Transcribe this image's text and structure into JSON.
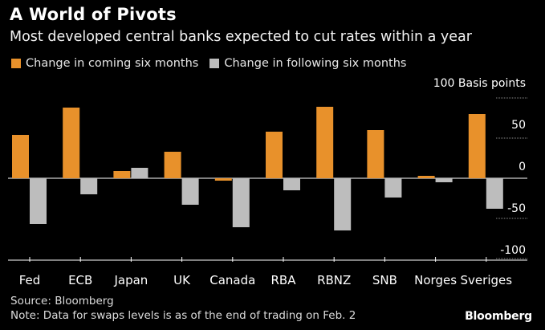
{
  "header": {
    "title": "A World of Pivots",
    "subtitle": "Most developed central banks expected to cut rates within a year"
  },
  "legend": {
    "items": [
      {
        "label": "Change in coming six months",
        "color": "#E8912B"
      },
      {
        "label": "Change in following six months",
        "color": "#BDBDBD"
      }
    ]
  },
  "footer": {
    "source": "Source: Bloomberg",
    "note": "Note: Data for swaps levels is as of the end of trading on Feb. 2",
    "brand": "Bloomberg"
  },
  "chart_data": {
    "type": "bar",
    "title": "A World of Pivots",
    "subtitle": "Most developed central banks expected to cut rates within a year",
    "unit_label": "Basis points",
    "categories": [
      "Fed",
      "ECB",
      "Japan",
      "UK",
      "Canada",
      "RBA",
      "RBNZ",
      "SNB",
      "Norges",
      "Sveriges"
    ],
    "series": [
      {
        "name": "Change in coming six months",
        "color": "#E8912B",
        "values": [
          54,
          88,
          9,
          33,
          -3,
          58,
          89,
          60,
          3,
          80
        ]
      },
      {
        "name": "Change in following six months",
        "color": "#BDBDBD",
        "values": [
          -57,
          -20,
          13,
          -33,
          -61,
          -15,
          -65,
          -24,
          -5,
          -38
        ]
      }
    ],
    "yticks": [
      100,
      50,
      0,
      -50,
      -100
    ],
    "ytick_labels": [
      "100 Basis points",
      "50",
      "0",
      "-50",
      "-100"
    ],
    "ylim": [
      -100,
      100
    ],
    "grid": true,
    "legend_position": "top-left"
  }
}
